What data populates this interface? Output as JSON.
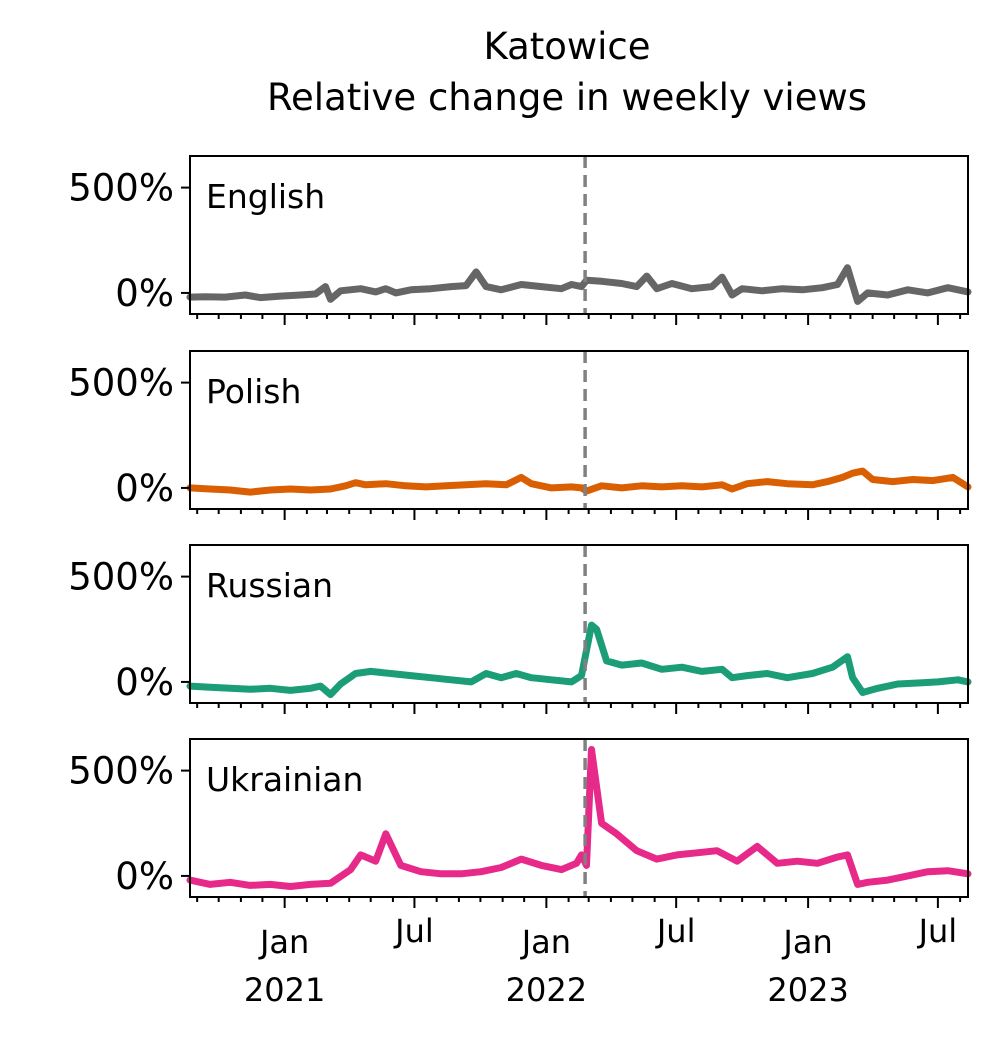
{
  "chart_data": {
    "type": "line",
    "title": "Katowice",
    "subtitle": "Relative change in weekly views",
    "xlabel": "",
    "ylabel": "",
    "x_range": [
      "2020-08-22",
      "2023-08-12"
    ],
    "ylim": [
      -100,
      650
    ],
    "y_ticks": [
      {
        "value": 0,
        "label": "0%"
      },
      {
        "value": 500,
        "label": "500%"
      }
    ],
    "x_ticks": [
      {
        "date": "2021-01-01",
        "label": "Jan",
        "year": "2021"
      },
      {
        "date": "2021-07-01",
        "label": "Jul",
        "year": ""
      },
      {
        "date": "2022-01-01",
        "label": "Jan",
        "year": "2022"
      },
      {
        "date": "2022-07-01",
        "label": "Jul",
        "year": ""
      },
      {
        "date": "2023-01-01",
        "label": "Jan",
        "year": "2023"
      },
      {
        "date": "2023-07-01",
        "label": "Jul",
        "year": ""
      }
    ],
    "vline_date": "2022-02-24",
    "grid": false,
    "legend": "none",
    "series": [
      {
        "name": "English",
        "color": "#666666",
        "points": [
          [
            "2020-08-22",
            -20
          ],
          [
            "2020-09-12",
            -18
          ],
          [
            "2020-10-10",
            -20
          ],
          [
            "2020-11-07",
            -10
          ],
          [
            "2020-11-28",
            -22
          ],
          [
            "2020-12-26",
            -15
          ],
          [
            "2021-01-23",
            -10
          ],
          [
            "2021-02-13",
            -5
          ],
          [
            "2021-02-27",
            30
          ],
          [
            "2021-03-06",
            -30
          ],
          [
            "2021-03-20",
            10
          ],
          [
            "2021-04-17",
            20
          ],
          [
            "2021-05-08",
            5
          ],
          [
            "2021-05-22",
            20
          ],
          [
            "2021-06-05",
            0
          ],
          [
            "2021-06-26",
            15
          ],
          [
            "2021-07-24",
            20
          ],
          [
            "2021-08-21",
            30
          ],
          [
            "2021-09-11",
            35
          ],
          [
            "2021-09-25",
            100
          ],
          [
            "2021-10-09",
            30
          ],
          [
            "2021-10-30",
            15
          ],
          [
            "2021-11-27",
            40
          ],
          [
            "2021-12-25",
            30
          ],
          [
            "2022-01-22",
            20
          ],
          [
            "2022-02-05",
            40
          ],
          [
            "2022-02-19",
            30
          ],
          [
            "2022-02-26",
            60
          ],
          [
            "2022-03-19",
            55
          ],
          [
            "2022-04-16",
            45
          ],
          [
            "2022-05-07",
            30
          ],
          [
            "2022-05-21",
            80
          ],
          [
            "2022-06-04",
            20
          ],
          [
            "2022-06-25",
            45
          ],
          [
            "2022-07-23",
            20
          ],
          [
            "2022-08-20",
            30
          ],
          [
            "2022-09-03",
            75
          ],
          [
            "2022-09-17",
            -10
          ],
          [
            "2022-10-01",
            20
          ],
          [
            "2022-10-29",
            10
          ],
          [
            "2022-11-26",
            20
          ],
          [
            "2022-12-24",
            15
          ],
          [
            "2023-01-21",
            25
          ],
          [
            "2023-02-11",
            40
          ],
          [
            "2023-02-25",
            120
          ],
          [
            "2023-03-11",
            -40
          ],
          [
            "2023-03-25",
            0
          ],
          [
            "2023-04-22",
            -10
          ],
          [
            "2023-05-20",
            15
          ],
          [
            "2023-06-17",
            0
          ],
          [
            "2023-07-15",
            25
          ],
          [
            "2023-08-12",
            5
          ]
        ]
      },
      {
        "name": "Polish",
        "color": "#d95f02",
        "points": [
          [
            "2020-08-22",
            0
          ],
          [
            "2020-09-19",
            -5
          ],
          [
            "2020-10-17",
            -10
          ],
          [
            "2020-11-14",
            -20
          ],
          [
            "2020-12-12",
            -10
          ],
          [
            "2021-01-09",
            -5
          ],
          [
            "2021-02-06",
            -10
          ],
          [
            "2021-03-06",
            -5
          ],
          [
            "2021-03-27",
            10
          ],
          [
            "2021-04-10",
            25
          ],
          [
            "2021-04-24",
            15
          ],
          [
            "2021-05-22",
            20
          ],
          [
            "2021-06-19",
            10
          ],
          [
            "2021-07-17",
            5
          ],
          [
            "2021-08-14",
            10
          ],
          [
            "2021-09-11",
            15
          ],
          [
            "2021-10-09",
            20
          ],
          [
            "2021-11-06",
            15
          ],
          [
            "2021-11-27",
            50
          ],
          [
            "2021-12-11",
            20
          ],
          [
            "2022-01-08",
            0
          ],
          [
            "2022-02-05",
            5
          ],
          [
            "2022-02-19",
            0
          ],
          [
            "2022-02-26",
            -15
          ],
          [
            "2022-03-19",
            10
          ],
          [
            "2022-04-16",
            0
          ],
          [
            "2022-05-14",
            10
          ],
          [
            "2022-06-11",
            5
          ],
          [
            "2022-07-09",
            10
          ],
          [
            "2022-08-06",
            5
          ],
          [
            "2022-09-03",
            15
          ],
          [
            "2022-09-17",
            -5
          ],
          [
            "2022-10-08",
            20
          ],
          [
            "2022-11-05",
            30
          ],
          [
            "2022-12-03",
            20
          ],
          [
            "2023-01-07",
            15
          ],
          [
            "2023-01-28",
            30
          ],
          [
            "2023-02-18",
            50
          ],
          [
            "2023-03-04",
            70
          ],
          [
            "2023-03-18",
            80
          ],
          [
            "2023-04-01",
            40
          ],
          [
            "2023-04-29",
            30
          ],
          [
            "2023-05-27",
            40
          ],
          [
            "2023-06-24",
            35
          ],
          [
            "2023-07-22",
            50
          ],
          [
            "2023-08-12",
            5
          ]
        ]
      },
      {
        "name": "Russian",
        "color": "#1b9e77",
        "points": [
          [
            "2020-08-22",
            -20
          ],
          [
            "2020-09-19",
            -25
          ],
          [
            "2020-10-17",
            -30
          ],
          [
            "2020-11-14",
            -35
          ],
          [
            "2020-12-12",
            -30
          ],
          [
            "2021-01-09",
            -40
          ],
          [
            "2021-02-06",
            -30
          ],
          [
            "2021-02-20",
            -20
          ],
          [
            "2021-03-06",
            -60
          ],
          [
            "2021-03-20",
            -10
          ],
          [
            "2021-04-10",
            40
          ],
          [
            "2021-05-01",
            50
          ],
          [
            "2021-05-29",
            40
          ],
          [
            "2021-06-26",
            30
          ],
          [
            "2021-07-24",
            20
          ],
          [
            "2021-08-21",
            10
          ],
          [
            "2021-09-18",
            0
          ],
          [
            "2021-10-09",
            40
          ],
          [
            "2021-10-30",
            20
          ],
          [
            "2021-11-20",
            40
          ],
          [
            "2021-12-11",
            20
          ],
          [
            "2022-01-08",
            10
          ],
          [
            "2022-02-05",
            0
          ],
          [
            "2022-02-19",
            30
          ],
          [
            "2022-03-05",
            270
          ],
          [
            "2022-03-12",
            250
          ],
          [
            "2022-03-26",
            100
          ],
          [
            "2022-04-16",
            80
          ],
          [
            "2022-05-14",
            90
          ],
          [
            "2022-06-11",
            60
          ],
          [
            "2022-07-09",
            70
          ],
          [
            "2022-08-06",
            50
          ],
          [
            "2022-09-03",
            60
          ],
          [
            "2022-09-17",
            20
          ],
          [
            "2022-10-08",
            30
          ],
          [
            "2022-11-05",
            40
          ],
          [
            "2022-12-03",
            20
          ],
          [
            "2023-01-07",
            40
          ],
          [
            "2023-02-04",
            70
          ],
          [
            "2023-02-25",
            120
          ],
          [
            "2023-03-04",
            20
          ],
          [
            "2023-03-18",
            -50
          ],
          [
            "2023-04-08",
            -30
          ],
          [
            "2023-05-06",
            -10
          ],
          [
            "2023-06-03",
            -5
          ],
          [
            "2023-07-01",
            0
          ],
          [
            "2023-07-29",
            10
          ],
          [
            "2023-08-12",
            0
          ]
        ]
      },
      {
        "name": "Ukrainian",
        "color": "#e7298a",
        "points": [
          [
            "2020-08-22",
            -20
          ],
          [
            "2020-09-19",
            -40
          ],
          [
            "2020-10-17",
            -30
          ],
          [
            "2020-11-14",
            -45
          ],
          [
            "2020-12-12",
            -40
          ],
          [
            "2021-01-09",
            -50
          ],
          [
            "2021-02-06",
            -40
          ],
          [
            "2021-03-06",
            -35
          ],
          [
            "2021-04-03",
            30
          ],
          [
            "2021-04-17",
            100
          ],
          [
            "2021-05-08",
            70
          ],
          [
            "2021-05-22",
            200
          ],
          [
            "2021-06-12",
            50
          ],
          [
            "2021-07-10",
            20
          ],
          [
            "2021-08-07",
            10
          ],
          [
            "2021-09-04",
            10
          ],
          [
            "2021-10-02",
            20
          ],
          [
            "2021-10-30",
            40
          ],
          [
            "2021-11-27",
            80
          ],
          [
            "2021-12-25",
            50
          ],
          [
            "2022-01-22",
            30
          ],
          [
            "2022-02-12",
            60
          ],
          [
            "2022-02-19",
            100
          ],
          [
            "2022-02-26",
            50
          ],
          [
            "2022-03-05",
            600
          ],
          [
            "2022-03-19",
            250
          ],
          [
            "2022-04-09",
            200
          ],
          [
            "2022-05-07",
            120
          ],
          [
            "2022-06-04",
            80
          ],
          [
            "2022-07-02",
            100
          ],
          [
            "2022-07-30",
            110
          ],
          [
            "2022-08-27",
            120
          ],
          [
            "2022-09-24",
            70
          ],
          [
            "2022-10-22",
            140
          ],
          [
            "2022-11-19",
            60
          ],
          [
            "2022-12-17",
            70
          ],
          [
            "2023-01-14",
            60
          ],
          [
            "2023-02-11",
            90
          ],
          [
            "2023-02-25",
            100
          ],
          [
            "2023-03-11",
            -40
          ],
          [
            "2023-03-25",
            -30
          ],
          [
            "2023-04-22",
            -20
          ],
          [
            "2023-05-20",
            0
          ],
          [
            "2023-06-17",
            20
          ],
          [
            "2023-07-15",
            25
          ],
          [
            "2023-08-12",
            10
          ]
        ]
      }
    ]
  }
}
